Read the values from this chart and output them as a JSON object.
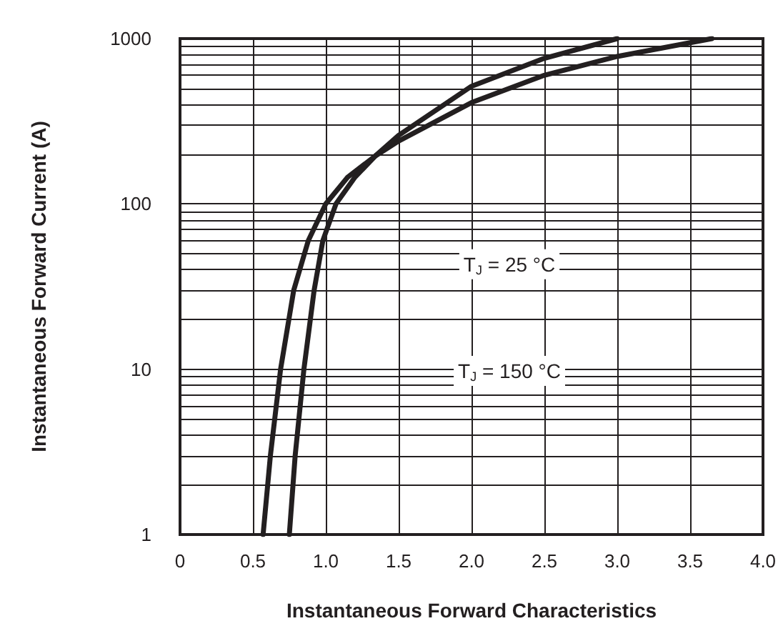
{
  "chart_data": {
    "type": "line",
    "ylabel": "Instantaneous Forward Current (A)",
    "xlabel": "Instantaneous Forward Characteristics",
    "xlim": [
      0,
      4.0
    ],
    "xticks": [
      {
        "value": 0,
        "label": "0"
      },
      0.5,
      {
        "value": 1,
        "label": "1.0"
      },
      1.5,
      {
        "value": 2,
        "label": "2.0"
      },
      2.5,
      {
        "value": 3,
        "label": "3.0"
      },
      3.5,
      {
        "value": 4,
        "label": "4.0"
      }
    ],
    "ylim": [
      1,
      1000
    ],
    "yticks": [
      1,
      10,
      100,
      1000
    ],
    "log": "y",
    "grid": true,
    "marker": "none",
    "line_style": "solid",
    "series": [
      {
        "color": "#231f20",
        "x": [
          0.57,
          0.62,
          0.69,
          0.78,
          0.88,
          1.0,
          1.15,
          1.34,
          1.5,
          2.0,
          2.5,
          3.0,
          3.65
        ],
        "values": [
          1,
          3,
          10,
          30,
          60,
          100,
          145,
          195,
          240,
          410,
          600,
          780,
          1000
        ]
      },
      {
        "color": "#231f20",
        "x": [
          0.75,
          0.79,
          0.85,
          0.92,
          0.98,
          1.07,
          1.2,
          1.34,
          1.5,
          2.0,
          2.5,
          3.0
        ],
        "values": [
          1,
          3,
          10,
          30,
          60,
          100,
          145,
          195,
          260,
          515,
          760,
          1000
        ]
      }
    ],
    "annotations": [
      "T$_{J}$ = 25 °C",
      "T$_{J}$ = 150 °C"
    ]
  }
}
